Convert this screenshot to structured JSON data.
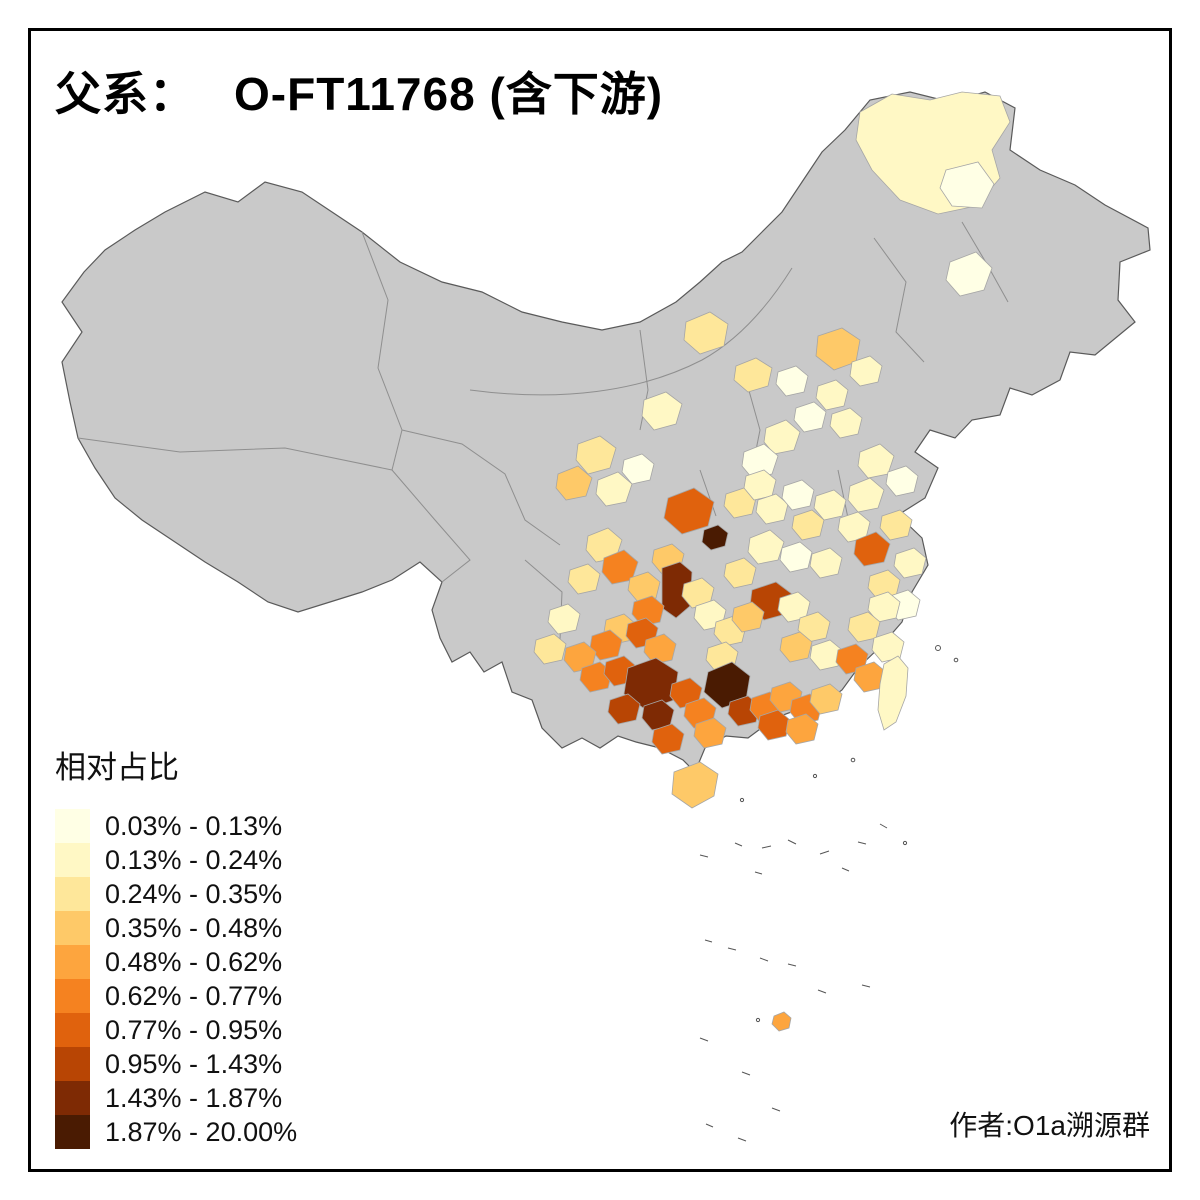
{
  "title": {
    "prefix": "父系：",
    "name": "O-FT11768 (含下游)"
  },
  "legend": {
    "title": "相对占比",
    "items": [
      {
        "label": "0.03% - 0.13%",
        "color": "#FFFFE5"
      },
      {
        "label": "0.13% - 0.24%",
        "color": "#FFF8C5"
      },
      {
        "label": "0.24% - 0.35%",
        "color": "#FEE79A"
      },
      {
        "label": "0.35% - 0.48%",
        "color": "#FEC968"
      },
      {
        "label": "0.48% - 0.62%",
        "color": "#FDA53E"
      },
      {
        "label": "0.62% - 0.77%",
        "color": "#F58220"
      },
      {
        "label": "0.77% - 0.95%",
        "color": "#E0620D"
      },
      {
        "label": "0.95% - 1.43%",
        "color": "#B84504"
      },
      {
        "label": "1.43% - 1.87%",
        "color": "#7E2A04"
      },
      {
        "label": "1.87% - 20.00%",
        "color": "#4A1B02"
      }
    ]
  },
  "credit": "作者:O1a溯源群",
  "map": {
    "no_data_color": "#C9C9C9",
    "boundary_color": "#8F8F8F",
    "outline_color": "#5A5A5A",
    "frame_color": "#000000",
    "region_stroke": "#A6A6A6"
  }
}
